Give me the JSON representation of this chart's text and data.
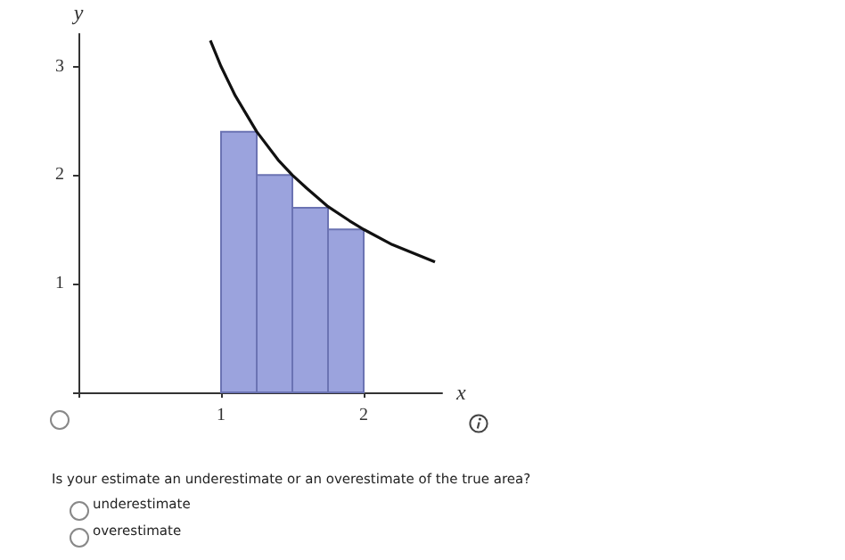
{
  "chart_data": {
    "type": "bar",
    "xlabel": "x",
    "ylabel": "y",
    "x": [
      1.125,
      1.375,
      1.625,
      1.875
    ],
    "series": [
      {
        "color": "#9ba3dd",
        "values": [
          2.4,
          2.0,
          1.7,
          1.5
        ]
      },
      {
        "type": "line",
        "color": "#111111",
        "x": [
          0.925,
          1,
          1.1,
          1.25,
          1.4,
          1.5,
          1.6,
          1.75,
          1.9,
          2,
          2.2,
          2.35,
          2.5
        ],
        "values": [
          3.24,
          3,
          2.73,
          2.4,
          2.14,
          2,
          1.88,
          1.71,
          1.58,
          1.5,
          1.36,
          1.28,
          1.2
        ]
      }
    ],
    "xlim": [
      0,
      2.55
    ],
    "ylim": [
      0,
      3.3
    ],
    "xticks": [
      {
        "value": 0,
        "label": null
      },
      1,
      2
    ],
    "yticks": [
      {
        "value": 0,
        "label": null
      },
      1,
      2,
      3
    ],
    "grid": false,
    "marker": "none",
    "line_style": "solid",
    "annotations": [
      "Is your estimate an underestimate or an overestimate of the true area?",
      "underestimate",
      "overestimate"
    ]
  }
}
